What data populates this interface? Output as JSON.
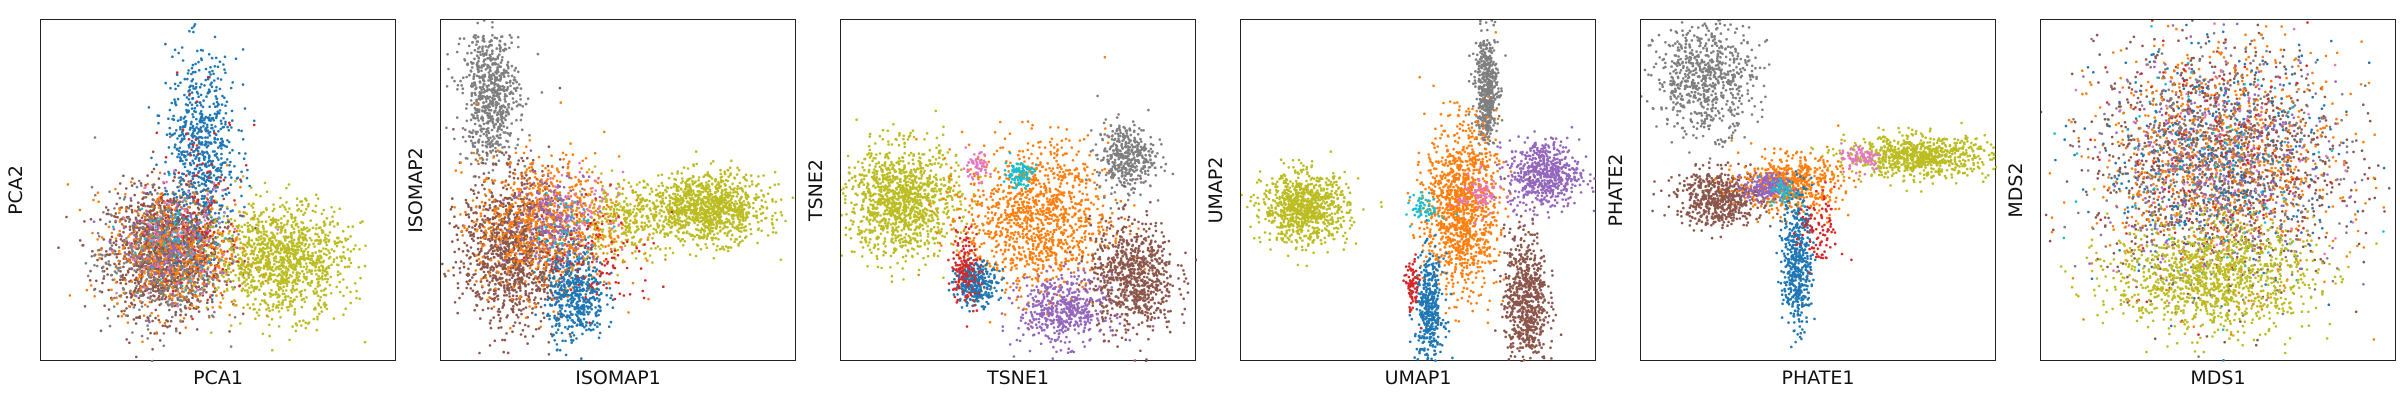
{
  "palette": [
    "#1f77b4",
    "#ff7f0e",
    "#d62728",
    "#9467bd",
    "#8c564b",
    "#e377c2",
    "#7f7f7f",
    "#bcbd22",
    "#17becf"
  ],
  "chart_data": [
    {
      "type": "scatter",
      "title": "",
      "xlabel": "PCA1",
      "ylabel": "PCA2",
      "grid": false,
      "legend": "none",
      "ticks": "hidden",
      "xlim": [
        0,
        100
      ],
      "ylim": [
        0,
        100
      ],
      "series": [
        {
          "color": "#8c564b",
          "x": 35,
          "y": 32,
          "sx": 8,
          "sy": 9,
          "n": 1400
        },
        {
          "color": "#ff7f0e",
          "x": 38,
          "y": 33,
          "sx": 9,
          "sy": 9,
          "n": 700
        },
        {
          "color": "#7f7f7f",
          "x": 33,
          "y": 30,
          "sx": 9,
          "sy": 10,
          "n": 400
        },
        {
          "color": "#1f77b4",
          "x": 45,
          "y": 62,
          "sx": 5,
          "sy": 14,
          "n": 700
        },
        {
          "color": "#bcbd22",
          "x": 68,
          "y": 30,
          "sx": 9,
          "sy": 8,
          "n": 1200
        },
        {
          "color": "#d62728",
          "x": 45,
          "y": 45,
          "sx": 6,
          "sy": 14,
          "n": 120
        },
        {
          "color": "#9467bd",
          "x": 36,
          "y": 34,
          "sx": 7,
          "sy": 8,
          "n": 120
        },
        {
          "color": "#e377c2",
          "x": 38,
          "y": 36,
          "sx": 8,
          "sy": 8,
          "n": 90
        },
        {
          "color": "#17becf",
          "x": 38,
          "y": 35,
          "sx": 7,
          "sy": 7,
          "n": 60
        }
      ]
    },
    {
      "type": "scatter",
      "title": "",
      "xlabel": "ISOMAP1",
      "ylabel": "ISOMAP2",
      "grid": false,
      "legend": "none",
      "ticks": "hidden",
      "xlim": [
        0,
        100
      ],
      "ylim": [
        0,
        100
      ],
      "series": [
        {
          "color": "#7f7f7f",
          "x": 14,
          "y": 78,
          "sx": 4,
          "sy": 10,
          "n": 700
        },
        {
          "color": "#8c564b",
          "x": 20,
          "y": 33,
          "sx": 7,
          "sy": 11,
          "n": 1200
        },
        {
          "color": "#ff7f0e",
          "x": 30,
          "y": 40,
          "sx": 10,
          "sy": 10,
          "n": 900
        },
        {
          "color": "#1f77b4",
          "x": 38,
          "y": 20,
          "sx": 4,
          "sy": 7,
          "n": 500
        },
        {
          "color": "#bcbd22",
          "x": 75,
          "y": 45,
          "sx": 8,
          "sy": 5,
          "n": 1100
        },
        {
          "color": "#bcbd22",
          "x": 52,
          "y": 42,
          "sx": 7,
          "sy": 5,
          "n": 300
        },
        {
          "color": "#9467bd",
          "x": 32,
          "y": 42,
          "sx": 6,
          "sy": 7,
          "n": 200
        },
        {
          "color": "#d62728",
          "x": 45,
          "y": 30,
          "sx": 8,
          "sy": 8,
          "n": 100
        },
        {
          "color": "#e377c2",
          "x": 40,
          "y": 45,
          "sx": 6,
          "sy": 5,
          "n": 60
        },
        {
          "color": "#17becf",
          "x": 35,
          "y": 40,
          "sx": 5,
          "sy": 5,
          "n": 40
        }
      ]
    },
    {
      "type": "scatter",
      "title": "",
      "xlabel": "TSNE1",
      "ylabel": "TSNE2",
      "grid": false,
      "legend": "none",
      "ticks": "hidden",
      "xlim": [
        0,
        100
      ],
      "ylim": [
        0,
        100
      ],
      "series": [
        {
          "color": "#bcbd22",
          "x": 17,
          "y": 47,
          "sx": 8,
          "sy": 8,
          "n": 1200
        },
        {
          "color": "#ff7f0e",
          "x": 55,
          "y": 42,
          "sx": 10,
          "sy": 11,
          "n": 1200
        },
        {
          "color": "#7f7f7f",
          "x": 80,
          "y": 60,
          "sx": 4,
          "sy": 5,
          "n": 400
        },
        {
          "color": "#8c564b",
          "x": 82,
          "y": 25,
          "sx": 6,
          "sy": 8,
          "n": 800
        },
        {
          "color": "#9467bd",
          "x": 62,
          "y": 15,
          "sx": 6,
          "sy": 5,
          "n": 500
        },
        {
          "color": "#1f77b4",
          "x": 38,
          "y": 23,
          "sx": 3,
          "sy": 3,
          "n": 300
        },
        {
          "color": "#d62728",
          "x": 35,
          "y": 28,
          "sx": 2,
          "sy": 6,
          "n": 150
        },
        {
          "color": "#17becf",
          "x": 50,
          "y": 55,
          "sx": 2,
          "sy": 2,
          "n": 100
        },
        {
          "color": "#e377c2",
          "x": 38,
          "y": 57,
          "sx": 2,
          "sy": 2,
          "n": 60
        }
      ]
    },
    {
      "type": "scatter",
      "title": "",
      "xlabel": "UMAP1",
      "ylabel": "UMAP2",
      "grid": false,
      "legend": "none",
      "ticks": "hidden",
      "xlim": [
        0,
        100
      ],
      "ylim": [
        0,
        100
      ],
      "series": [
        {
          "color": "#bcbd22",
          "x": 18,
          "y": 45,
          "sx": 6,
          "sy": 5,
          "n": 900
        },
        {
          "color": "#7f7f7f",
          "x": 69,
          "y": 80,
          "sx": 1.6,
          "sy": 8,
          "n": 500
        },
        {
          "color": "#ff7f0e",
          "x": 62,
          "y": 45,
          "sx": 5,
          "sy": 12,
          "n": 1200
        },
        {
          "color": "#9467bd",
          "x": 85,
          "y": 55,
          "sx": 5,
          "sy": 5,
          "n": 600
        },
        {
          "color": "#8c564b",
          "x": 80,
          "y": 18,
          "sx": 3,
          "sy": 10,
          "n": 700
        },
        {
          "color": "#1f77b4",
          "x": 53,
          "y": 15,
          "sx": 2,
          "sy": 8,
          "n": 400
        },
        {
          "color": "#d62728",
          "x": 48,
          "y": 22,
          "sx": 1,
          "sy": 4,
          "n": 80
        },
        {
          "color": "#17becf",
          "x": 52,
          "y": 45,
          "sx": 2,
          "sy": 2,
          "n": 60
        },
        {
          "color": "#e377c2",
          "x": 67,
          "y": 49,
          "sx": 3,
          "sy": 3,
          "n": 80
        }
      ]
    },
    {
      "type": "scatter",
      "title": "",
      "xlabel": "PHATE1",
      "ylabel": "PHATE2",
      "grid": false,
      "legend": "none",
      "ticks": "hidden",
      "xlim": [
        0,
        100
      ],
      "ylim": [
        0,
        100
      ],
      "series": [
        {
          "color": "#7f7f7f",
          "x": 18,
          "y": 83,
          "sx": 7,
          "sy": 8,
          "n": 700
        },
        {
          "color": "#bcbd22",
          "x": 78,
          "y": 60,
          "sx": 10,
          "sy": 3,
          "n": 800
        },
        {
          "color": "#8c564b",
          "x": 22,
          "y": 48,
          "sx": 6,
          "sy": 4,
          "n": 600
        },
        {
          "color": "#ff7f0e",
          "x": 42,
          "y": 52,
          "sx": 7,
          "sy": 4,
          "n": 600
        },
        {
          "color": "#1f77b4",
          "x": 44,
          "y": 30,
          "sx": 2,
          "sy": 10,
          "n": 500
        },
        {
          "color": "#d62728",
          "x": 50,
          "y": 38,
          "sx": 3,
          "sy": 6,
          "n": 100
        },
        {
          "color": "#9467bd",
          "x": 35,
          "y": 51,
          "sx": 3,
          "sy": 2,
          "n": 200
        },
        {
          "color": "#e377c2",
          "x": 62,
          "y": 60,
          "sx": 3,
          "sy": 2,
          "n": 80
        },
        {
          "color": "#17becf",
          "x": 40,
          "y": 50,
          "sx": 2,
          "sy": 2,
          "n": 50
        }
      ]
    },
    {
      "type": "scatter",
      "title": "",
      "xlabel": "MDS1",
      "ylabel": "MDS2",
      "grid": false,
      "legend": "none",
      "ticks": "hidden",
      "xlim": [
        0,
        100
      ],
      "ylim": [
        0,
        100
      ],
      "series": [
        {
          "color": "#8c564b",
          "x": 50,
          "y": 58,
          "sx": 17,
          "sy": 17,
          "n": 1200
        },
        {
          "color": "#ff7f0e",
          "x": 50,
          "y": 58,
          "sx": 17,
          "sy": 17,
          "n": 900
        },
        {
          "color": "#7f7f7f",
          "x": 50,
          "y": 58,
          "sx": 17,
          "sy": 17,
          "n": 500
        },
        {
          "color": "#1f77b4",
          "x": 50,
          "y": 58,
          "sx": 17,
          "sy": 17,
          "n": 400
        },
        {
          "color": "#9467bd",
          "x": 50,
          "y": 58,
          "sx": 17,
          "sy": 17,
          "n": 300
        },
        {
          "color": "#d62728",
          "x": 50,
          "y": 58,
          "sx": 17,
          "sy": 17,
          "n": 120
        },
        {
          "color": "#e377c2",
          "x": 50,
          "y": 58,
          "sx": 17,
          "sy": 17,
          "n": 100
        },
        {
          "color": "#17becf",
          "x": 50,
          "y": 58,
          "sx": 17,
          "sy": 17,
          "n": 80
        },
        {
          "color": "#bcbd22",
          "x": 48,
          "y": 25,
          "sx": 14,
          "sy": 8,
          "n": 1200
        }
      ]
    }
  ]
}
